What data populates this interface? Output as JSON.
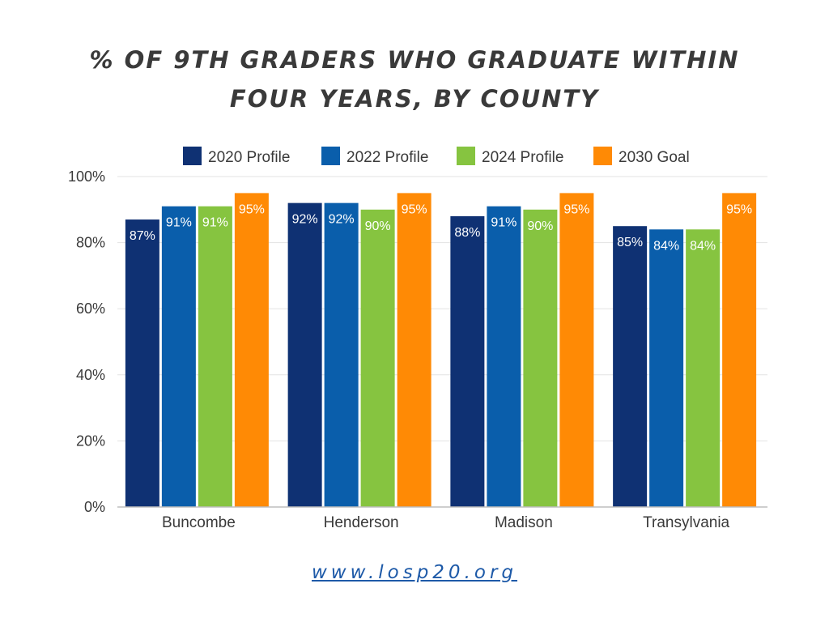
{
  "title": "% OF 9TH GRADERS WHO GRADUATE WITHIN FOUR YEARS, BY COUNTY",
  "footer": {
    "link_text": "www.losp20.org"
  },
  "chart_data": {
    "type": "bar",
    "categories": [
      "Buncombe",
      "Henderson",
      "Madison",
      "Transylvania"
    ],
    "series": [
      {
        "name": "2020 Profile",
        "color": "#0f3173",
        "values": [
          87,
          92,
          88,
          85
        ],
        "labels": [
          "87%",
          "92%",
          "88%",
          "85%"
        ]
      },
      {
        "name": "2022 Profile",
        "color": "#0a5eab",
        "values": [
          91,
          92,
          91,
          84
        ],
        "labels": [
          "91%",
          "92%",
          "91%",
          "84%"
        ]
      },
      {
        "name": "2024 Profile",
        "color": "#86c440",
        "values": [
          91,
          90,
          90,
          84
        ],
        "labels": [
          "91%",
          "90%",
          "90%",
          "84%"
        ]
      },
      {
        "name": "2030 Goal",
        "color": "#ff8a05",
        "values": [
          95,
          95,
          95,
          95
        ],
        "labels": [
          "95%",
          "95%",
          "95%",
          "95%"
        ]
      }
    ],
    "y_ticks": [
      0,
      20,
      40,
      60,
      80,
      100
    ],
    "y_tick_labels": [
      "0%",
      "20%",
      "40%",
      "60%",
      "80%",
      "100%"
    ],
    "ylim": [
      0,
      100
    ],
    "grid": true,
    "legend_position": "top"
  }
}
